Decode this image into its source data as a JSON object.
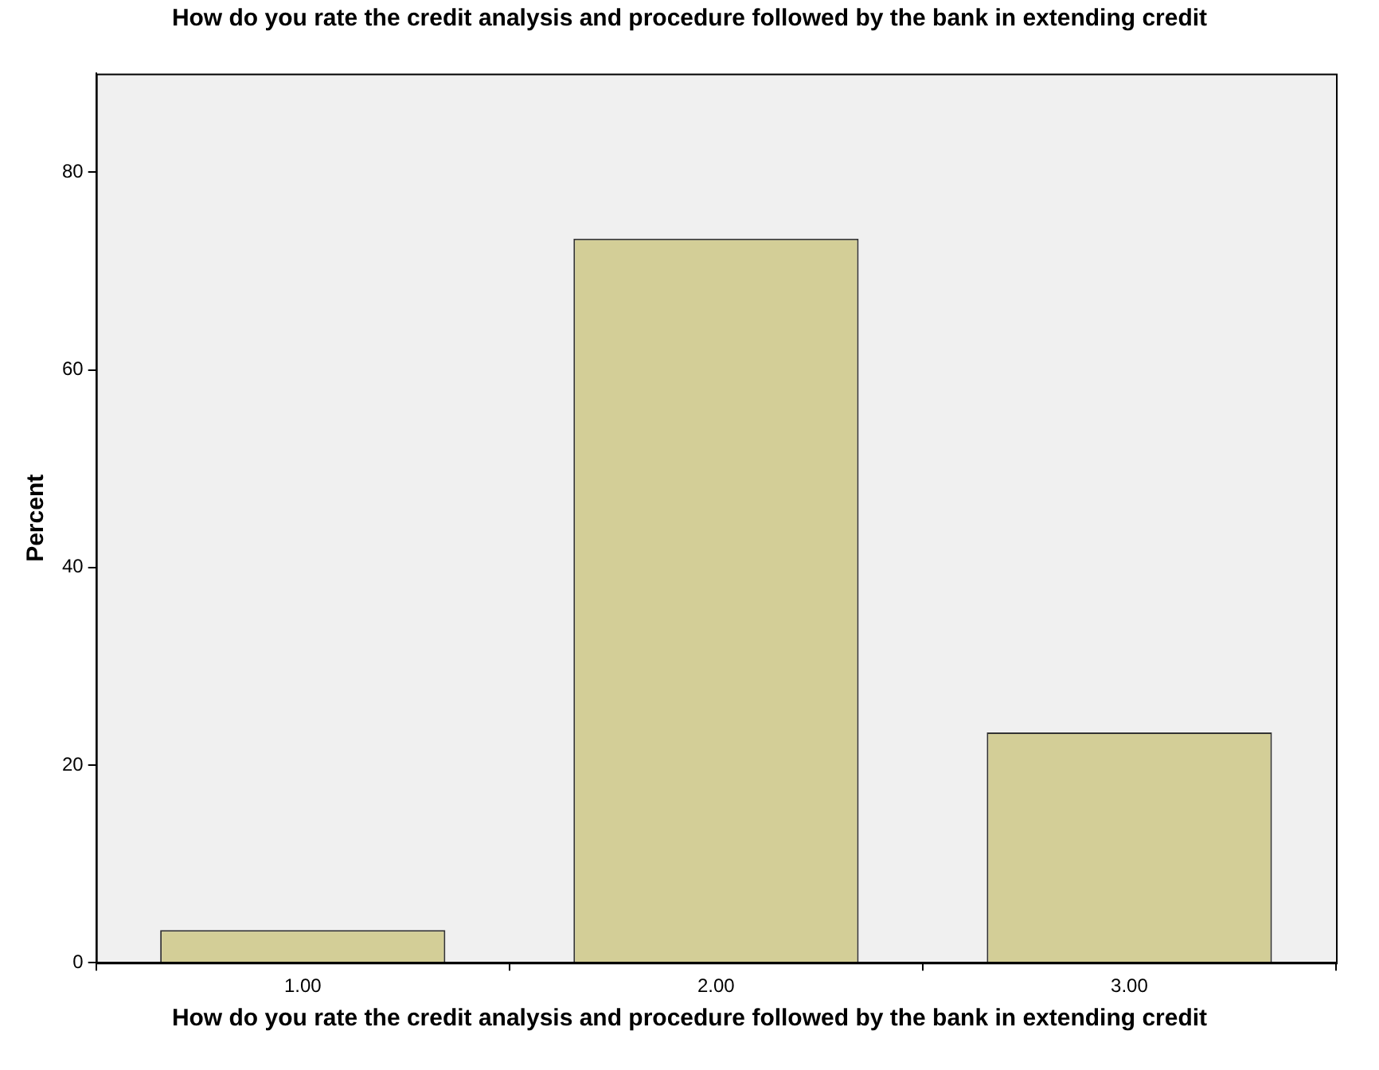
{
  "chart_data": {
    "type": "bar",
    "title": "How do you rate the credit analysis and procedure followed by the bank in extending credit",
    "xlabel": "How do you rate the credit analysis and procedure followed by the bank in extending credit",
    "ylabel": "Percent",
    "categories": [
      "1.00",
      "2.00",
      "3.00"
    ],
    "values": [
      3.3,
      73.3,
      23.3
    ],
    "color": "#d3ce97",
    "ylim": [
      0,
      90
    ],
    "yticks": [
      0,
      20,
      40,
      60,
      80
    ],
    "grid": false
  }
}
